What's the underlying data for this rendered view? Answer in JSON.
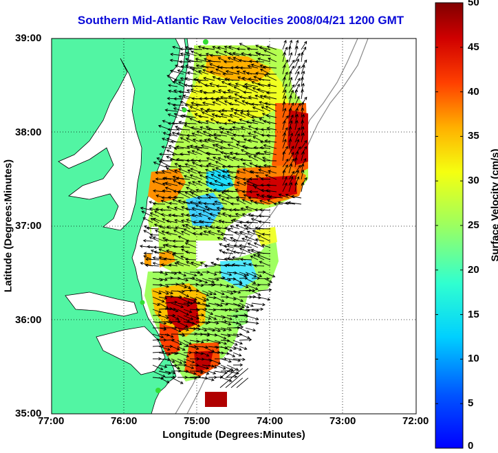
{
  "title": "Southern Mid-Atlantic Raw Velocities 2008/04/21 1200 GMT",
  "axes": {
    "xlabel": "Longitude (Degrees:Minutes)",
    "ylabel": "Latitude (Degrees:Minutes)",
    "x_ticks": [
      "77:00",
      "76:00",
      "75:00",
      "74:00",
      "73:00",
      "72:00"
    ],
    "y_ticks": [
      "39:00",
      "38:00",
      "37:00",
      "36:00",
      "35:00"
    ],
    "x_range_deg_west": [
      77,
      72
    ],
    "y_range_deg_north": [
      35,
      39
    ],
    "grid": "dotted"
  },
  "colorbar": {
    "label": "Surface Velocity (cm/s)",
    "ticks": [
      "0",
      "5",
      "10",
      "15",
      "20",
      "25",
      "30",
      "35",
      "40",
      "45",
      "50"
    ],
    "range": [
      0,
      50
    ],
    "colormap": "jet"
  },
  "colors": {
    "title": "#0a0ad8",
    "land": "#52f5a3",
    "coastline": "#000000",
    "bathymetry": "#888888",
    "site_marker": "#33dd33"
  },
  "icons": [
    "velocity-arrow-icon",
    "radar-site-icon"
  ]
}
